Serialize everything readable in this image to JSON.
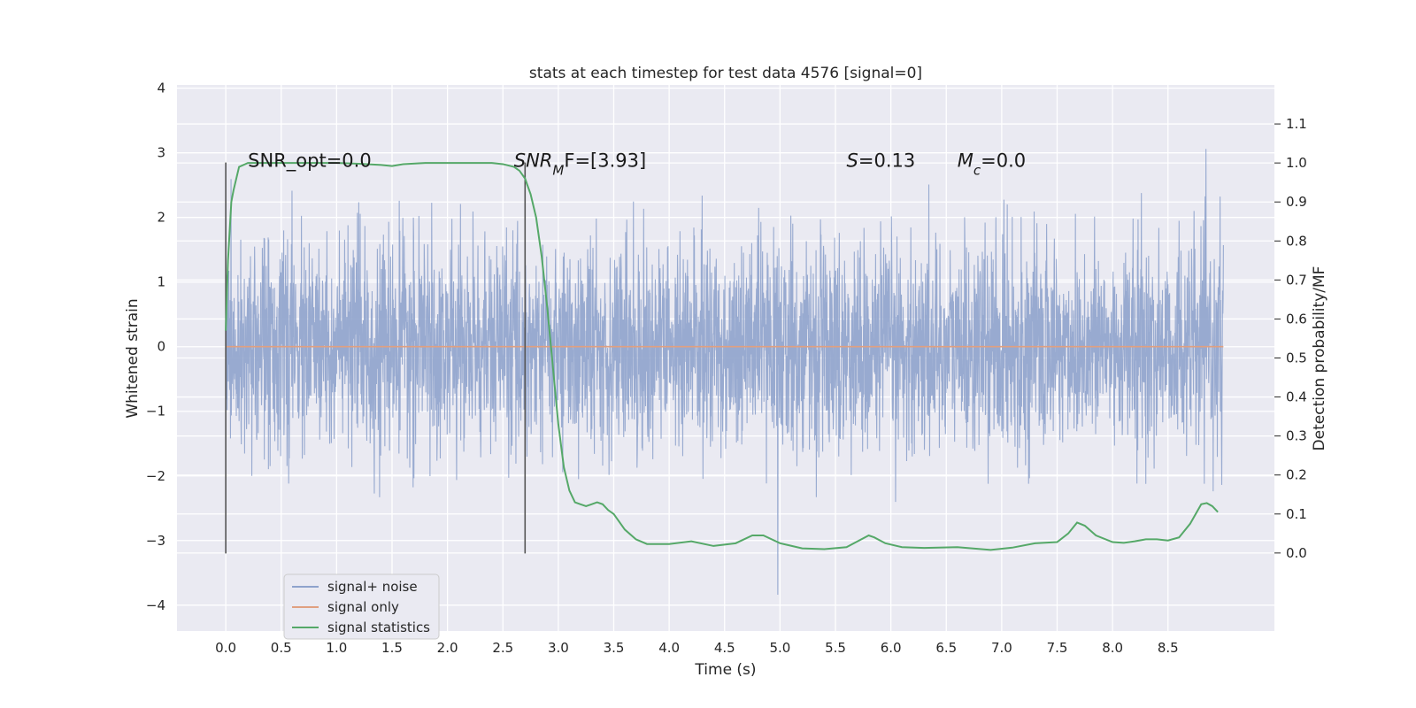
{
  "chart_data": {
    "type": "line",
    "title": "stats at each timestep for test data 4576 [signal=0]",
    "xlabel": "Time (s)",
    "ylabel_left": "Whitened strain",
    "ylabel_right": "Detection probability/MF",
    "xlim": [
      -0.44,
      9.46
    ],
    "ylim_left": [
      -4.4,
      4.05
    ],
    "ylim_right": [
      -0.2,
      1.2
    ],
    "x_ticks": [
      "0.0",
      "0.5",
      "1.0",
      "1.5",
      "2.0",
      "2.5",
      "3.0",
      "3.5",
      "4.0",
      "4.5",
      "5.0",
      "5.5",
      "6.0",
      "6.5",
      "7.0",
      "7.5",
      "8.0",
      "8.5"
    ],
    "y_ticks_left": [
      "−4",
      "−3",
      "−2",
      "−1",
      "0",
      "1",
      "2",
      "3",
      "4"
    ],
    "y_ticks_right": [
      "0.0",
      "0.1",
      "0.2",
      "0.3",
      "0.4",
      "0.5",
      "0.6",
      "0.7",
      "0.8",
      "0.9",
      "1.0",
      "1.1"
    ],
    "grid": true,
    "legend_position": "lower-left",
    "series": [
      {
        "name": "signal+ noise",
        "axis": "left",
        "color": "#8fa3cc",
        "style": "noise",
        "x_range": [
          0.0,
          9.0
        ],
        "sigma": 0.8,
        "envelope": [
          -4.0,
          3.6
        ]
      },
      {
        "name": "signal only",
        "axis": "left",
        "color": "#e0a080",
        "x": [
          0.0,
          9.0
        ],
        "y": [
          0.0,
          0.0
        ]
      },
      {
        "name": "signal statistics",
        "axis": "right",
        "color": "#55a868",
        "x": [
          0.0,
          0.02,
          0.05,
          0.07,
          0.12,
          0.2,
          0.3,
          0.5,
          0.8,
          1.0,
          1.2,
          1.4,
          1.5,
          1.6,
          1.8,
          2.0,
          2.2,
          2.4,
          2.5,
          2.6,
          2.65,
          2.7,
          2.75,
          2.8,
          2.85,
          2.9,
          2.95,
          3.0,
          3.05,
          3.1,
          3.15,
          3.2,
          3.25,
          3.3,
          3.35,
          3.4,
          3.45,
          3.5,
          3.6,
          3.7,
          3.8,
          4.0,
          4.2,
          4.4,
          4.6,
          4.75,
          4.85,
          5.0,
          5.2,
          5.4,
          5.6,
          5.7,
          5.8,
          5.85,
          5.95,
          6.1,
          6.3,
          6.6,
          6.9,
          7.1,
          7.3,
          7.5,
          7.6,
          7.68,
          7.75,
          7.85,
          8.0,
          8.1,
          8.2,
          8.3,
          8.4,
          8.5,
          8.6,
          8.7,
          8.8,
          8.85,
          8.9,
          8.95
        ],
        "y": [
          0.57,
          0.75,
          0.9,
          0.93,
          0.99,
          1.0,
          1.0,
          1.0,
          1.0,
          1.0,
          0.998,
          0.995,
          0.992,
          0.997,
          1.0,
          1.0,
          1.0,
          1.0,
          0.997,
          0.99,
          0.98,
          0.96,
          0.92,
          0.86,
          0.76,
          0.63,
          0.48,
          0.33,
          0.22,
          0.16,
          0.13,
          0.125,
          0.12,
          0.125,
          0.13,
          0.125,
          0.11,
          0.1,
          0.06,
          0.035,
          0.023,
          0.023,
          0.03,
          0.018,
          0.025,
          0.045,
          0.045,
          0.025,
          0.012,
          0.01,
          0.015,
          0.03,
          0.045,
          0.04,
          0.025,
          0.015,
          0.013,
          0.015,
          0.008,
          0.014,
          0.025,
          0.028,
          0.05,
          0.078,
          0.07,
          0.045,
          0.028,
          0.026,
          0.03,
          0.035,
          0.035,
          0.032,
          0.04,
          0.075,
          0.125,
          0.128,
          0.12,
          0.105
        ]
      }
    ],
    "vlines": [
      {
        "x": 0.0,
        "y0": -3.2,
        "y1": 2.85
      },
      {
        "x": 2.7,
        "y0": -3.2,
        "y1": 2.85
      }
    ],
    "annotations": [
      {
        "id": "snr-opt",
        "x": 0.2,
        "y": 2.78,
        "parts": [
          {
            "t": "SNR_opt=0.0"
          }
        ]
      },
      {
        "id": "snr-mf",
        "x": 2.6,
        "y": 2.78,
        "parts": [
          {
            "t": "SNR",
            "i": true
          },
          {
            "t": "M",
            "i": true,
            "sub": true
          },
          {
            "t": "F=[3.93]"
          }
        ]
      },
      {
        "id": "s",
        "x": 5.6,
        "y": 2.78,
        "parts": [
          {
            "t": "S",
            "i": true
          },
          {
            "t": "=0.13"
          }
        ]
      },
      {
        "id": "mc",
        "x": 6.6,
        "y": 2.78,
        "parts": [
          {
            "t": "M",
            "i": true
          },
          {
            "t": "c",
            "i": true,
            "sub": true
          },
          {
            "t": "=0.0"
          }
        ]
      }
    ]
  }
}
